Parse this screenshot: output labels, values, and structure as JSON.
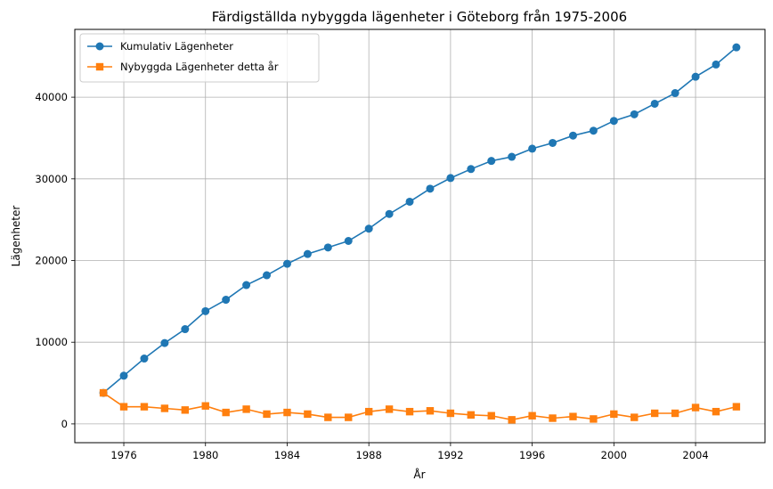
{
  "chart_data": {
    "type": "line",
    "title": "Färdigställda nybyggda lägenheter i Göteborg från 1975-2006",
    "xlabel": "År",
    "ylabel": "Lägenheter",
    "grid": true,
    "legend_position": "top-left",
    "xlim": [
      1973.6,
      2007.4
    ],
    "ylim": [
      -2300,
      48300
    ],
    "x_ticks": [
      1976,
      1980,
      1984,
      1988,
      1992,
      1996,
      2000,
      2004
    ],
    "y_ticks": [
      0,
      10000,
      20000,
      30000,
      40000
    ],
    "x": [
      1975,
      1976,
      1977,
      1978,
      1979,
      1980,
      1981,
      1982,
      1983,
      1984,
      1985,
      1986,
      1987,
      1988,
      1989,
      1990,
      1991,
      1992,
      1993,
      1994,
      1995,
      1996,
      1997,
      1998,
      1999,
      2000,
      2001,
      2002,
      2003,
      2004,
      2005,
      2006
    ],
    "series": [
      {
        "name": "Kumulativ Lägenheter",
        "color": "#1f77b4",
        "marker": "circle",
        "values": [
          3800,
          5900,
          8000,
          9900,
          11600,
          13800,
          15200,
          17000,
          18200,
          19600,
          20800,
          21600,
          22400,
          23900,
          25700,
          27200,
          28800,
          30100,
          31200,
          32200,
          32700,
          33700,
          34400,
          35300,
          35900,
          37100,
          37900,
          39200,
          40500,
          42500,
          44000,
          46100
        ]
      },
      {
        "name": "Nybyggda Lägenheter detta år",
        "color": "#ff7f0e",
        "marker": "square",
        "values": [
          3800,
          2100,
          2100,
          1900,
          1700,
          2200,
          1400,
          1800,
          1200,
          1400,
          1200,
          800,
          800,
          1500,
          1800,
          1500,
          1600,
          1300,
          1100,
          1000,
          500,
          1000,
          700,
          900,
          600,
          1200,
          800,
          1300,
          1300,
          2000,
          1500,
          2100
        ]
      }
    ]
  }
}
